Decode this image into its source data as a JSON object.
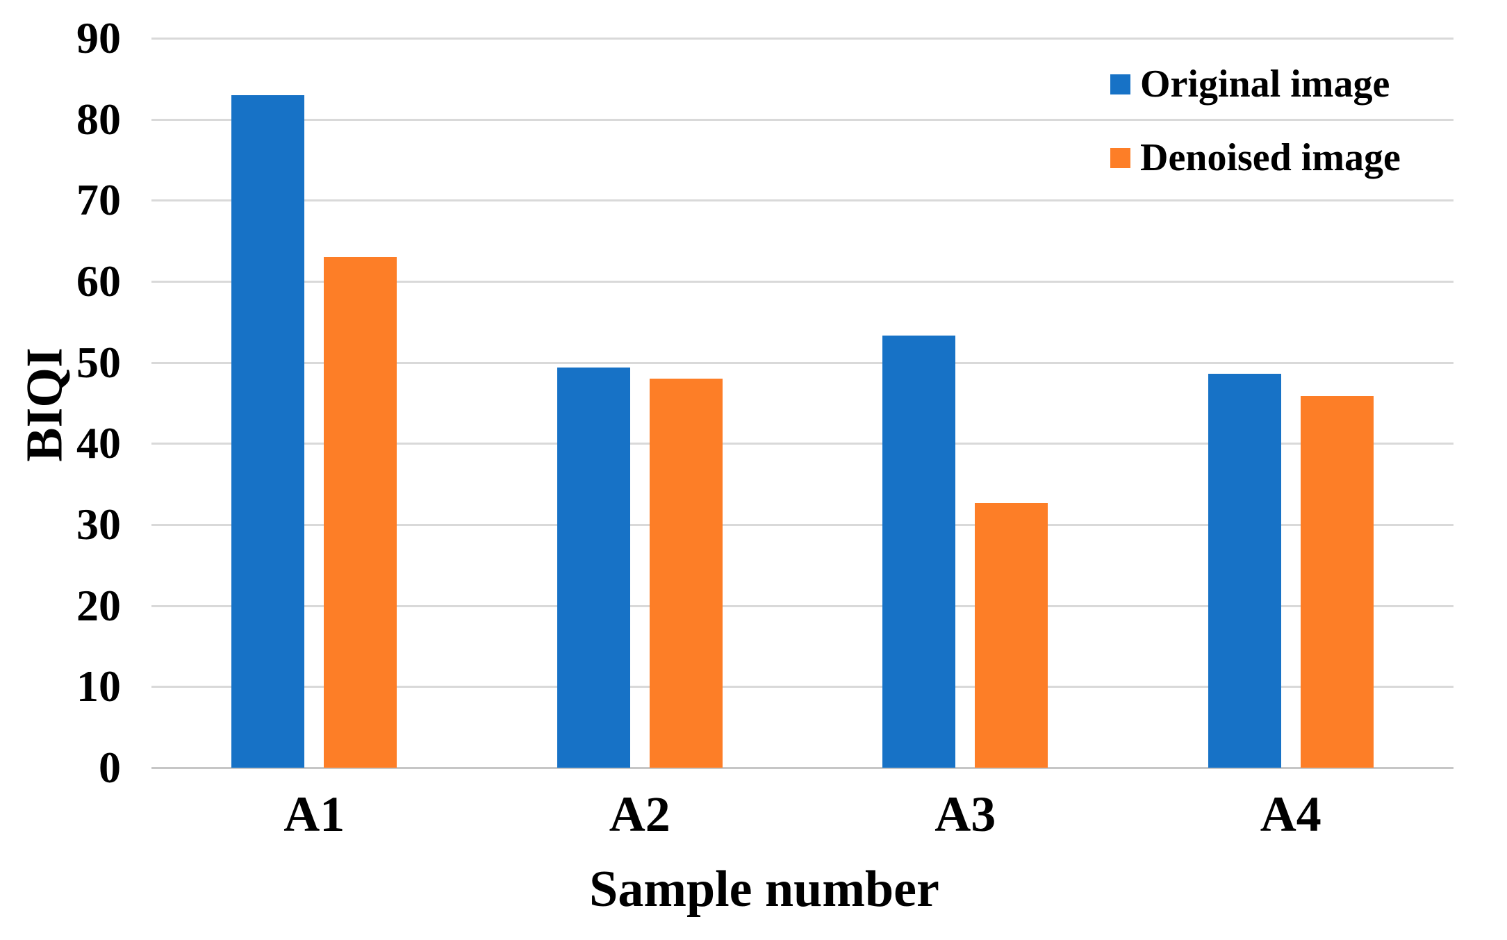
{
  "chart_data": {
    "type": "bar",
    "title": "",
    "categories": [
      "A1",
      "A2",
      "A3",
      "A4"
    ],
    "series": [
      {
        "name": "Original image",
        "color": "#1772C6",
        "values": [
          83,
          49.4,
          53.3,
          48.6
        ]
      },
      {
        "name": "Denoised image",
        "color": "#FD7E27",
        "values": [
          63,
          48,
          32.7,
          45.9
        ]
      }
    ],
    "xlabel": "Sample number",
    "ylabel": "BIQI",
    "ylim": [
      0,
      90
    ],
    "ytick_step": 10,
    "ytick_labels": [
      "0",
      "10",
      "20",
      "30",
      "40",
      "50",
      "60",
      "70",
      "80",
      "90"
    ],
    "grid": true,
    "legend_position": "top-right",
    "gridline_color": "#D9D9D9",
    "text_color": "#000000",
    "background_color": "#FFFFFF"
  }
}
